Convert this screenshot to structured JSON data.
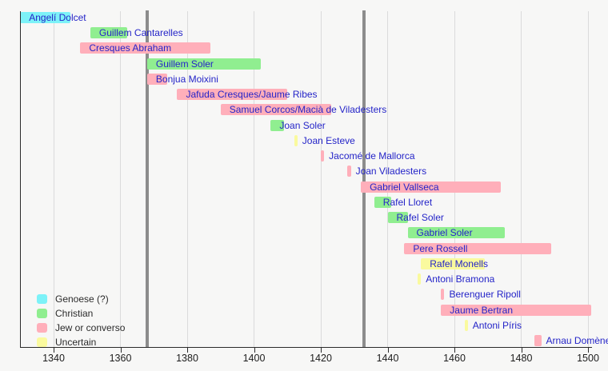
{
  "chart_data": {
    "type": "bar",
    "subtype": "horizontal-timeline-gantt",
    "title": "",
    "xlabel": "",
    "ylabel": "",
    "x_axis": {
      "min": 1330,
      "max": 1501,
      "ticks": [
        1340,
        1360,
        1380,
        1400,
        1420,
        1440,
        1460,
        1480,
        1500
      ],
      "grid": "on"
    },
    "reference_lines": [
      {
        "year": 1368
      },
      {
        "year": 1433
      }
    ],
    "people": [
      {
        "name": "Angelí Dolcet",
        "group": "genoese",
        "start": 1330,
        "end": 1345
      },
      {
        "name": "Guillem Cantarelles",
        "group": "christian",
        "start": 1351,
        "end": 1362
      },
      {
        "name": "Cresques Abraham",
        "group": "jew",
        "start": 1348,
        "end": 1387
      },
      {
        "name": "Guillem Soler",
        "group": "christian",
        "start": 1368,
        "end": 1402
      },
      {
        "name": "Bonjua Moixini",
        "group": "jew",
        "start": 1368,
        "end": 1374
      },
      {
        "name": "Jafuda Cresques/Jaume Ribes",
        "group": "jew",
        "start": 1377,
        "end": 1410
      },
      {
        "name": "Samuel Corcos/Macià de Viladesters",
        "group": "jew",
        "start": 1390,
        "end": 1423
      },
      {
        "name": "Joan Soler",
        "group": "christian",
        "start": 1405,
        "end": 1409
      },
      {
        "name": "Joan Esteve",
        "group": "uncertain",
        "start": 1412,
        "end": 1413
      },
      {
        "name": "Jacomé de Mallorca",
        "group": "jew",
        "start": 1420,
        "end": 1421
      },
      {
        "name": "Joan Viladesters",
        "group": "jew",
        "start": 1428,
        "end": 1429
      },
      {
        "name": "Gabriel Vallseca",
        "group": "jew",
        "start": 1432,
        "end": 1474
      },
      {
        "name": "Rafel Lloret",
        "group": "christian",
        "start": 1436,
        "end": 1441
      },
      {
        "name": "Rafel Soler",
        "group": "christian",
        "start": 1440,
        "end": 1446
      },
      {
        "name": "Gabriel Soler",
        "group": "christian",
        "start": 1446,
        "end": 1475
      },
      {
        "name": "Pere Rossell",
        "group": "jew",
        "start": 1445,
        "end": 1489
      },
      {
        "name": "Rafel Monells",
        "group": "uncertain",
        "start": 1450,
        "end": 1469
      },
      {
        "name": "Antoni Bramona",
        "group": "uncertain",
        "start": 1449,
        "end": 1450
      },
      {
        "name": "Berenguer Ripoll",
        "group": "jew",
        "start": 1456,
        "end": 1457
      },
      {
        "name": "Jaume Bertran",
        "group": "jew",
        "start": 1456,
        "end": 1501
      },
      {
        "name": "Antoni Píris",
        "group": "uncertain",
        "start": 1463,
        "end": 1464
      },
      {
        "name": "Arnau Domènech",
        "group": "jew",
        "start": 1484,
        "end": 1486
      }
    ],
    "legend": {
      "position": "bottom-left",
      "items": [
        {
          "label": "Genoese (?)",
          "group": "genoese"
        },
        {
          "label": "Christian",
          "group": "christian"
        },
        {
          "label": "Jew or converso",
          "group": "jew"
        },
        {
          "label": "Uncertain",
          "group": "uncertain"
        }
      ]
    },
    "colors": {
      "genoese": "#7df2f8",
      "christian": "#90ee90",
      "jew": "#ffafba",
      "uncertain": "#fafa9e",
      "bar_label_text": "#2424c8",
      "axis_text": "#1c1c1c",
      "axis_line": "#2b2b2b",
      "gridline": "#dbdbdb",
      "reference_line": "#8c8c8c",
      "background": "#f7f7f6"
    }
  }
}
